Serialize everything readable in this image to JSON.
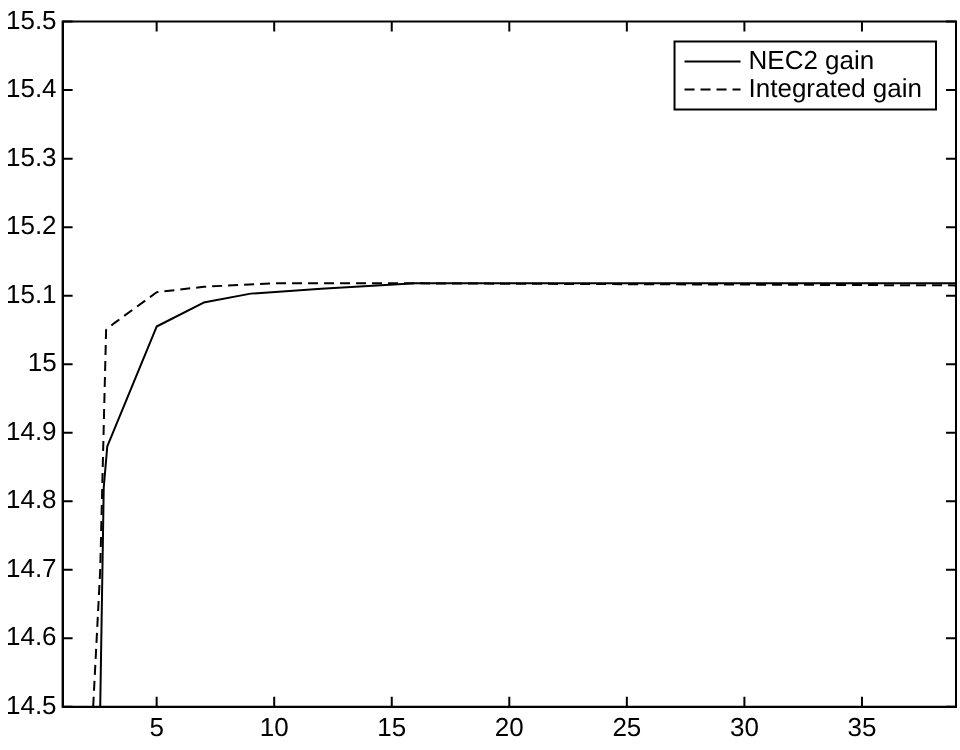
{
  "chart_data": {
    "type": "line",
    "legend": "top right",
    "grid": false,
    "marker": "none",
    "xlim": [
      1,
      39
    ],
    "xticks": [
      5,
      10,
      15,
      20,
      25,
      30,
      35
    ],
    "ylim": [
      14.5,
      15.5
    ],
    "yticks": [
      14.5,
      14.6,
      14.7,
      14.8,
      14.9,
      15,
      15.1,
      15.2,
      15.3,
      15.4,
      15.5
    ],
    "series": [
      {
        "name": "NEC2 gain",
        "color": "#000000",
        "line_style": "solid",
        "x": [
          2.6,
          2.75,
          2.9,
          5,
          7,
          9,
          12,
          16,
          39
        ],
        "values": [
          14.5,
          14.82,
          14.88,
          15.055,
          15.09,
          15.103,
          15.11,
          15.118,
          15.118
        ]
      },
      {
        "name": "Integrated gain",
        "color": "#000000",
        "line_style": "dashed",
        "x": [
          2.3,
          2.6,
          2.85,
          3.2,
          5,
          7,
          10,
          16,
          39
        ],
        "values": [
          14.5,
          14.7,
          15.05,
          15.06,
          15.105,
          15.113,
          15.118,
          15.118,
          15.115
        ]
      }
    ]
  }
}
